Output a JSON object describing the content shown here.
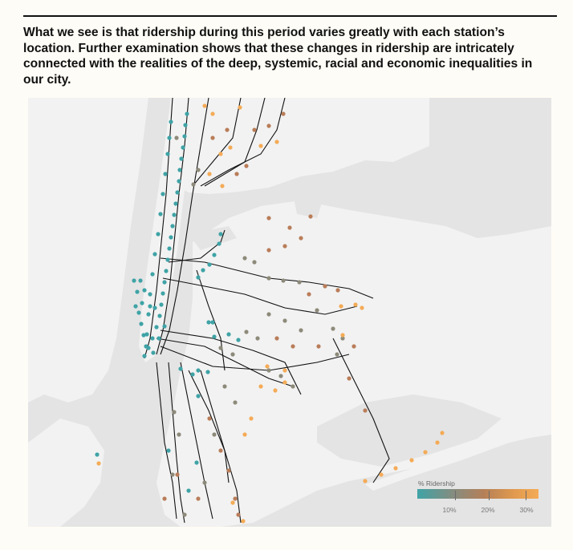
{
  "intro_text": "What we see is that ridership during this period varies greatly with each station’s location. Further examination shows that these changes in ridership are intricately connected with the realities of the deep, systemic, racial and economic inequalities in our city.",
  "colors": {
    "background": "#fefcf6",
    "water": "#e4e4e4",
    "land": "#f2f2f2",
    "low": "#3fa3a6",
    "mid": "#9c8a73",
    "high": "#f4ab57",
    "line": "#111111"
  },
  "legend": {
    "title": "% Ridership",
    "ticks": [
      {
        "label": "10%",
        "value": 10
      },
      {
        "label": "20%",
        "value": 20
      },
      {
        "label": "30%",
        "value": 30
      }
    ]
  }
}
